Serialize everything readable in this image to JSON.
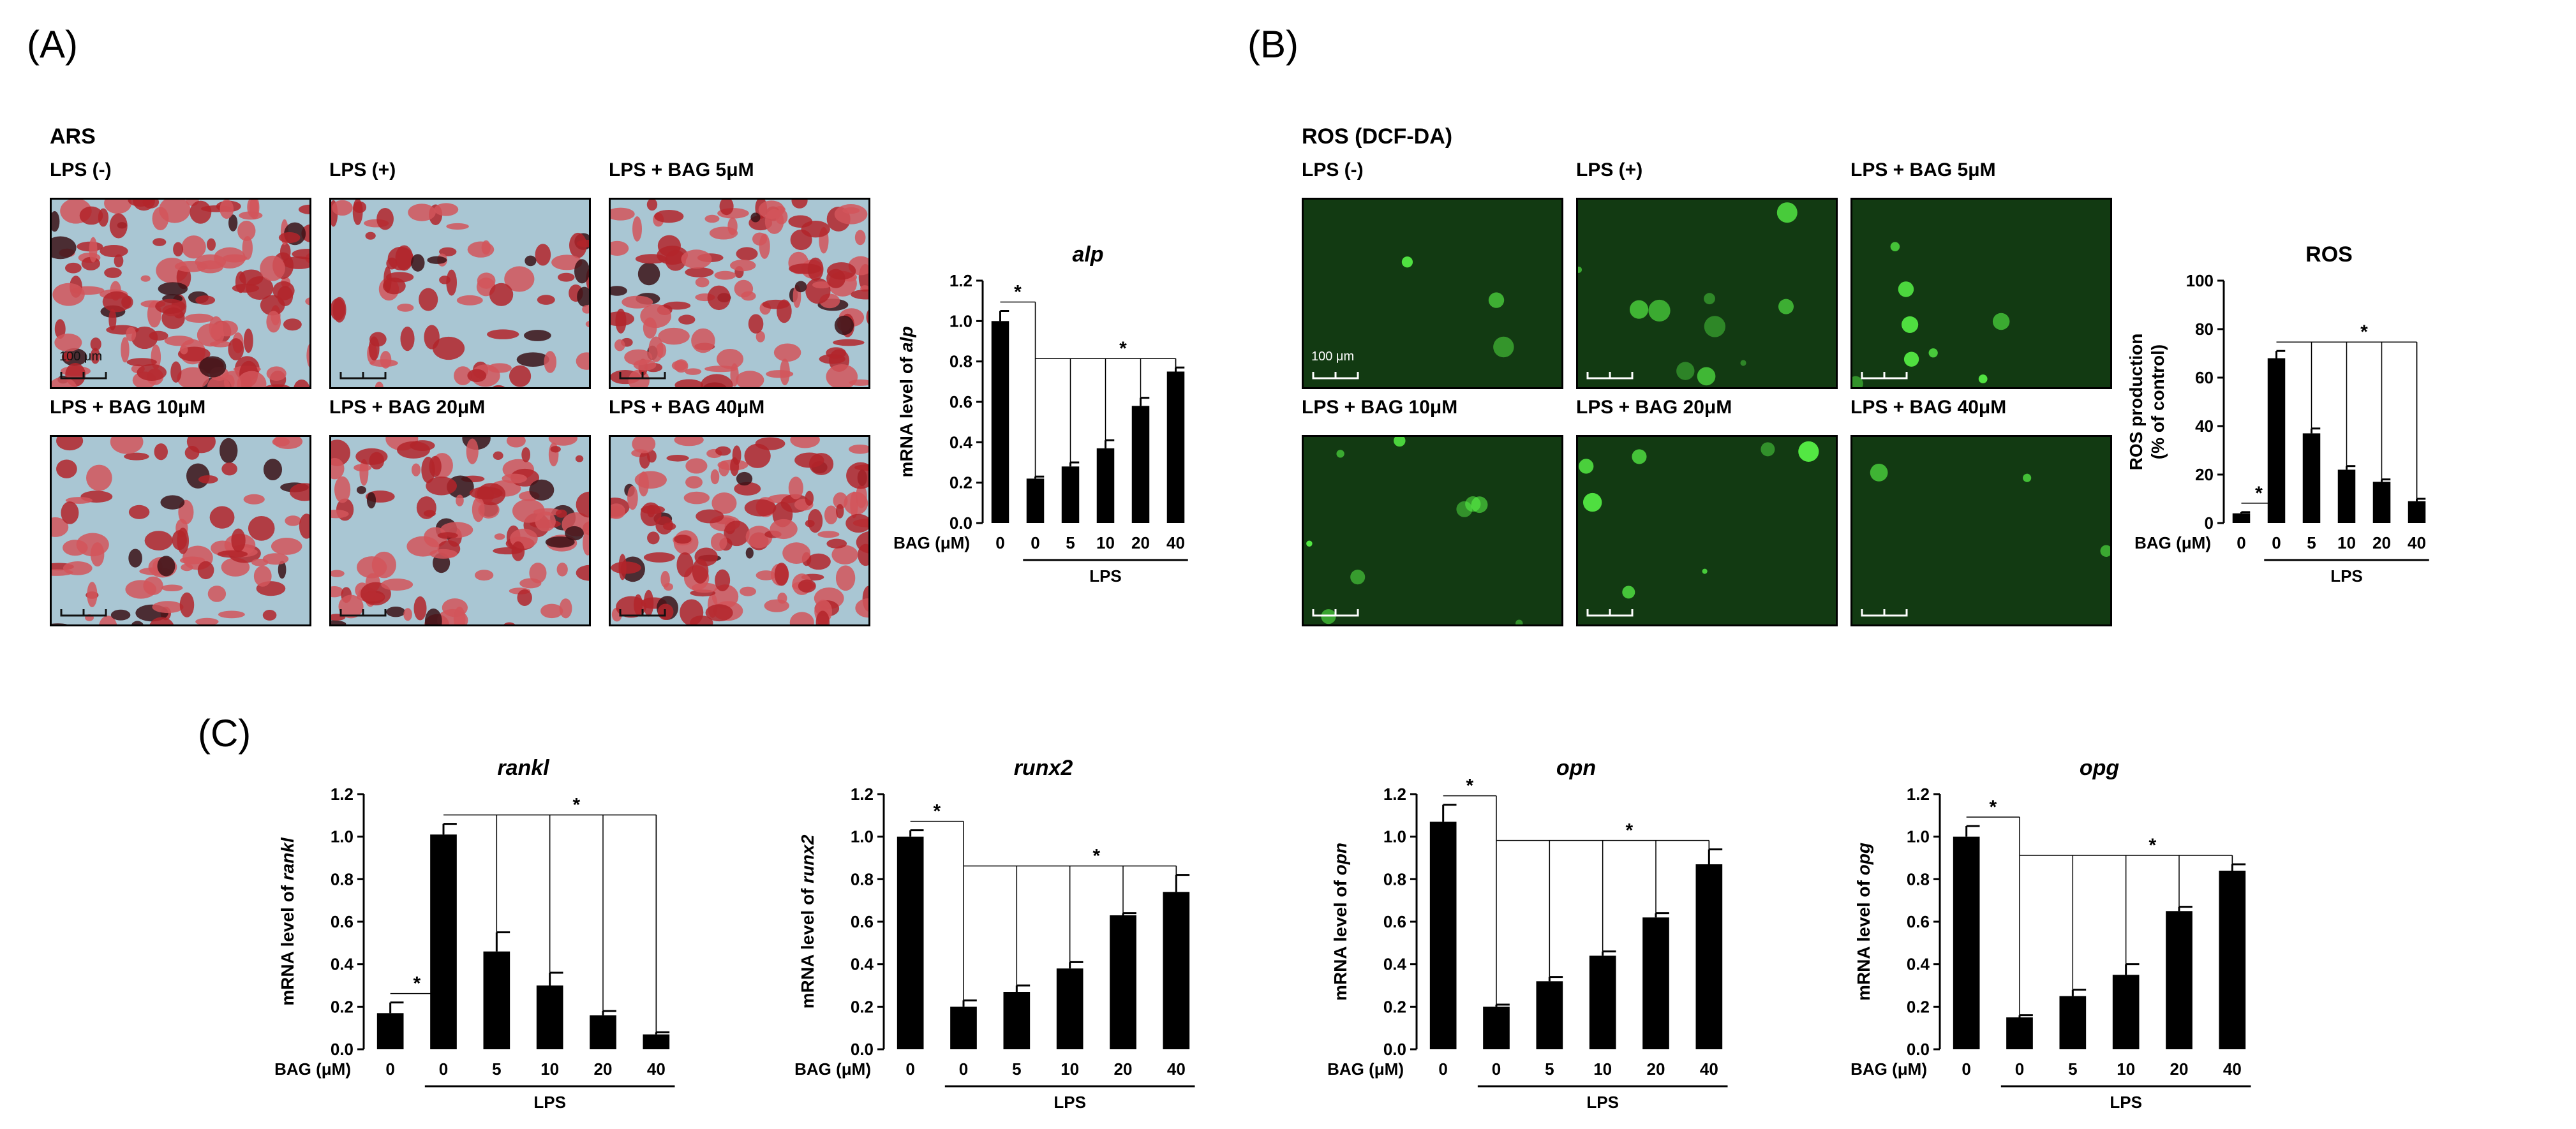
{
  "panels": {
    "A": {
      "letter": "(A)",
      "title": "ARS",
      "images": [
        "LPS (-)",
        "LPS (+)",
        "LPS + BAG 5μM",
        "LPS + BAG 10μM",
        "LPS + BAG 20μM",
        "LPS + BAG 40μM"
      ],
      "scale_label": "100 μm",
      "image_style": "alizarin-red stained mineral nodules (red) on pale blue background"
    },
    "B": {
      "letter": "(B)",
      "title": "ROS (DCF-DA)",
      "images": [
        "LPS (-)",
        "LPS (+)",
        "LPS + BAG 5μM",
        "LPS + BAG 10μM",
        "LPS + BAG 20μM",
        "LPS + BAG 40μM"
      ],
      "scale_label": "100 μm",
      "image_style": "green fluorescence on dark green background"
    },
    "C": {
      "letter": "(C)"
    }
  },
  "colors": {
    "bar": "#000000",
    "ars_bg": "#a9c6d3",
    "ars_red": "#b3242a",
    "ros_bg": "#123a12",
    "ros_glow": "#5cff4a"
  },
  "chart_data": [
    {
      "id": "alp",
      "type": "bar",
      "title": "alp",
      "ylabel_prefix": "mRNA level of ",
      "ylabel_italic": "alp",
      "categories": [
        "0",
        "0",
        "5",
        "10",
        "20",
        "40"
      ],
      "values": [
        1.0,
        0.22,
        0.28,
        0.37,
        0.58,
        0.75
      ],
      "errors": [
        0.05,
        0.01,
        0.02,
        0.04,
        0.04,
        0.02
      ],
      "ylim": [
        0,
        1.2
      ],
      "yticks": [
        "0.0",
        "0.2",
        "0.4",
        "0.6",
        "0.8",
        "1.0",
        "1.2"
      ],
      "xlabel": "BAG (μM)",
      "group_label": "LPS",
      "sig_marks": [
        "*",
        "*"
      ]
    },
    {
      "id": "ros",
      "type": "bar",
      "title": "ROS",
      "ylabel_line1": "ROS production",
      "ylabel_line2": "(% of control)",
      "categories": [
        "0",
        "0",
        "5",
        "10",
        "20",
        "40"
      ],
      "values": [
        4,
        68,
        37,
        22,
        17,
        9
      ],
      "errors": [
        0.5,
        3,
        2,
        1.5,
        1,
        1
      ],
      "ylim": [
        0,
        100
      ],
      "yticks": [
        "0",
        "20",
        "40",
        "60",
        "80",
        "100"
      ],
      "xlabel": "BAG (μM)",
      "group_label": "LPS",
      "sig_marks": [
        "*",
        "*"
      ]
    },
    {
      "id": "rankl",
      "type": "bar",
      "title": "rankl",
      "ylabel_prefix": "mRNA level of ",
      "ylabel_italic": "rankl",
      "categories": [
        "0",
        "0",
        "5",
        "10",
        "20",
        "40"
      ],
      "values": [
        0.17,
        1.01,
        0.46,
        0.3,
        0.16,
        0.07
      ],
      "errors": [
        0.05,
        0.05,
        0.09,
        0.06,
        0.02,
        0.01
      ],
      "ylim": [
        0,
        1.2
      ],
      "yticks": [
        "0.0",
        "0.2",
        "0.4",
        "0.6",
        "0.8",
        "1.0",
        "1.2"
      ],
      "xlabel": "BAG (μM)",
      "group_label": "LPS",
      "sig_marks": [
        "*",
        "*"
      ]
    },
    {
      "id": "runx2",
      "type": "bar",
      "title": "runx2",
      "ylabel_prefix": "mRNA level of ",
      "ylabel_italic": "runx2",
      "categories": [
        "0",
        "0",
        "5",
        "10",
        "20",
        "40"
      ],
      "values": [
        1.0,
        0.2,
        0.27,
        0.38,
        0.63,
        0.74
      ],
      "errors": [
        0.03,
        0.03,
        0.03,
        0.03,
        0.01,
        0.08
      ],
      "ylim": [
        0,
        1.2
      ],
      "yticks": [
        "0.0",
        "0.2",
        "0.4",
        "0.6",
        "0.8",
        "1.0",
        "1.2"
      ],
      "xlabel": "BAG (μM)",
      "group_label": "LPS",
      "sig_marks": [
        "*",
        "*"
      ]
    },
    {
      "id": "opn",
      "type": "bar",
      "title": "opn",
      "ylabel_prefix": "mRNA level of ",
      "ylabel_italic": "opn",
      "categories": [
        "0",
        "0",
        "5",
        "10",
        "20",
        "40"
      ],
      "values": [
        1.07,
        0.2,
        0.32,
        0.44,
        0.62,
        0.87
      ],
      "errors": [
        0.08,
        0.01,
        0.02,
        0.02,
        0.02,
        0.07
      ],
      "ylim": [
        0,
        1.2
      ],
      "yticks": [
        "0.0",
        "0.2",
        "0.4",
        "0.6",
        "0.8",
        "1.0",
        "1.2"
      ],
      "xlabel": "BAG (μM)",
      "group_label": "LPS",
      "sig_marks": [
        "*",
        "*"
      ]
    },
    {
      "id": "opg",
      "type": "bar",
      "title": "opg",
      "ylabel_prefix": "mRNA level of ",
      "ylabel_italic": "opg",
      "categories": [
        "0",
        "0",
        "5",
        "10",
        "20",
        "40"
      ],
      "values": [
        1.0,
        0.15,
        0.25,
        0.35,
        0.65,
        0.84
      ],
      "errors": [
        0.05,
        0.01,
        0.03,
        0.05,
        0.02,
        0.03
      ],
      "ylim": [
        0,
        1.2
      ],
      "yticks": [
        "0.0",
        "0.2",
        "0.4",
        "0.6",
        "0.8",
        "1.0",
        "1.2"
      ],
      "xlabel": "BAG (μM)",
      "group_label": "LPS",
      "sig_marks": [
        "*",
        "*"
      ]
    }
  ]
}
